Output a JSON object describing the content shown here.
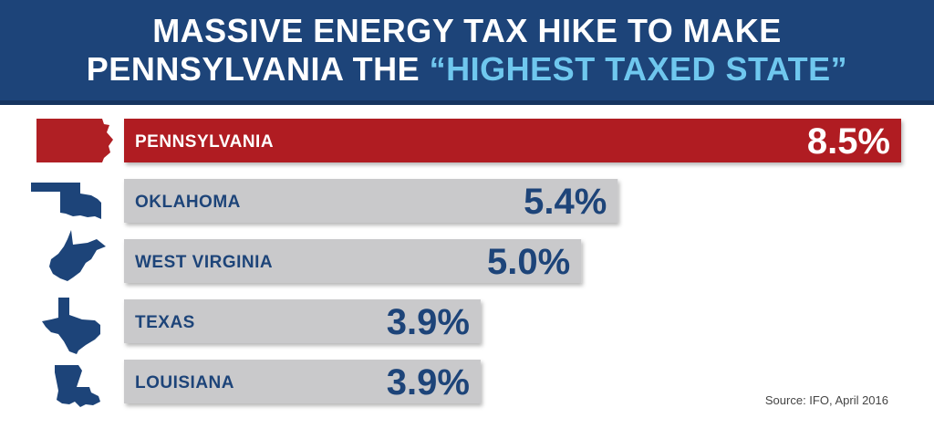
{
  "header": {
    "line1": "MASSIVE ENERGY TAX HIKE TO MAKE",
    "line2_prefix": "PENNSYLVANIA THE ",
    "line2_highlight": "“HIGHEST TAXED STATE”"
  },
  "source": "Source: IFO, April 2016",
  "colors": {
    "header_bg": "#1d4479",
    "highlight_text": "#6fc7ee",
    "pa_bar": "#b01f24",
    "other_bar": "#c9c9cb",
    "state_label": "#1d4479",
    "value_text_other": "#1d4479",
    "value_text_pa": "#ffffff"
  },
  "chart_data": {
    "type": "bar",
    "orientation": "horizontal",
    "title": "MASSIVE ENERGY TAX HIKE TO MAKE PENNSYLVANIA THE “HIGHEST TAXED STATE”",
    "categories": [
      "PENNSYLVANIA",
      "OKLAHOMA",
      "WEST VIRGINIA",
      "TEXAS",
      "LOUISIANA"
    ],
    "values": [
      8.5,
      5.4,
      5.0,
      3.9,
      3.9
    ],
    "value_labels": [
      "8.5%",
      "5.4%",
      "5.0%",
      "3.9%",
      "3.9%"
    ],
    "unit": "%",
    "xlim": [
      0,
      8.5
    ],
    "grid": false,
    "legend": "none",
    "icons": [
      "pennsylvania-shape-icon",
      "oklahoma-shape-icon",
      "west-virginia-shape-icon",
      "texas-shape-icon",
      "louisiana-shape-icon"
    ]
  }
}
